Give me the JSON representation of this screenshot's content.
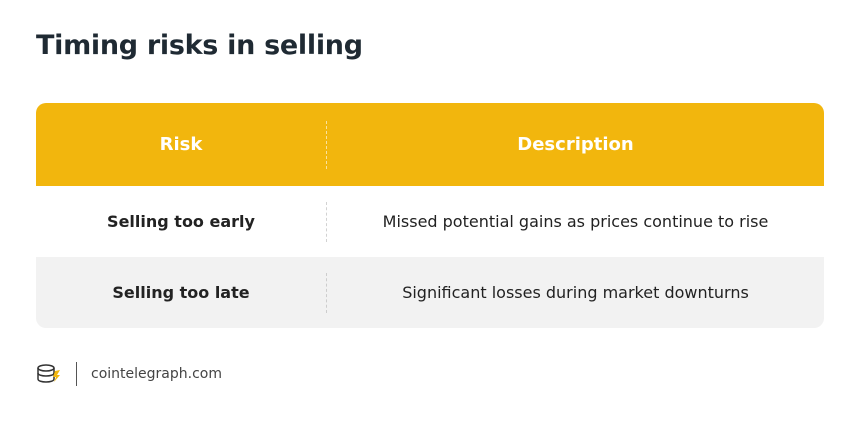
{
  "header": {
    "title": "Timing risks in selling"
  },
  "table": {
    "columns": [
      "Risk",
      "Description"
    ],
    "rows": [
      [
        "Selling too early",
        "Missed potential gains as prices continue to rise"
      ],
      [
        "Selling too late",
        "Significant losses during market downturns"
      ]
    ]
  },
  "footer": {
    "source": "cointelegraph.com"
  }
}
